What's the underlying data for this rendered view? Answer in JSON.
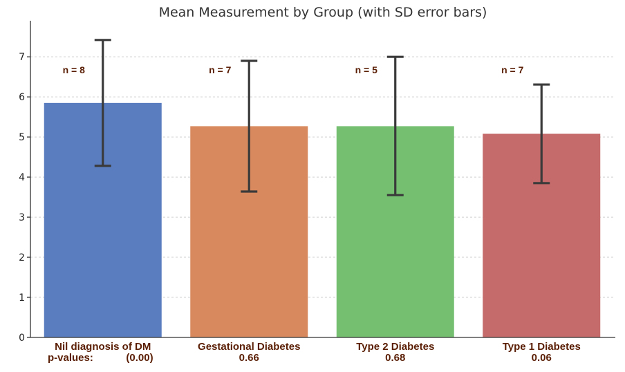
{
  "chart_data": {
    "type": "bar",
    "title": "Mean Measurement by Group (with SD error bars)",
    "xlabel": "",
    "ylabel": "",
    "ylim": [
      0,
      7.9
    ],
    "yticks": [
      "0",
      "1",
      "2",
      "3",
      "4",
      "5",
      "6",
      "7"
    ],
    "grid": true,
    "categories": [
      "Nil diagnosis of DM",
      "Gestational Diabetes",
      "Type 2 Diabetes",
      "Type 1 Diabetes"
    ],
    "values": [
      5.85,
      5.27,
      5.27,
      5.08
    ],
    "error_low": [
      4.28,
      3.64,
      3.55,
      3.85
    ],
    "error_high": [
      7.42,
      6.9,
      7.0,
      6.31
    ],
    "n_labels": [
      "n = 8",
      "n = 7",
      "n = 5",
      "n = 7"
    ],
    "pvalue_label": "p-values:",
    "pvalues": [
      "(0.00)",
      "0.66",
      "0.68",
      "0.06"
    ],
    "colors": [
      "#5a7dc0",
      "#d88a5e",
      "#74bf70",
      "#c66b6b"
    ]
  }
}
